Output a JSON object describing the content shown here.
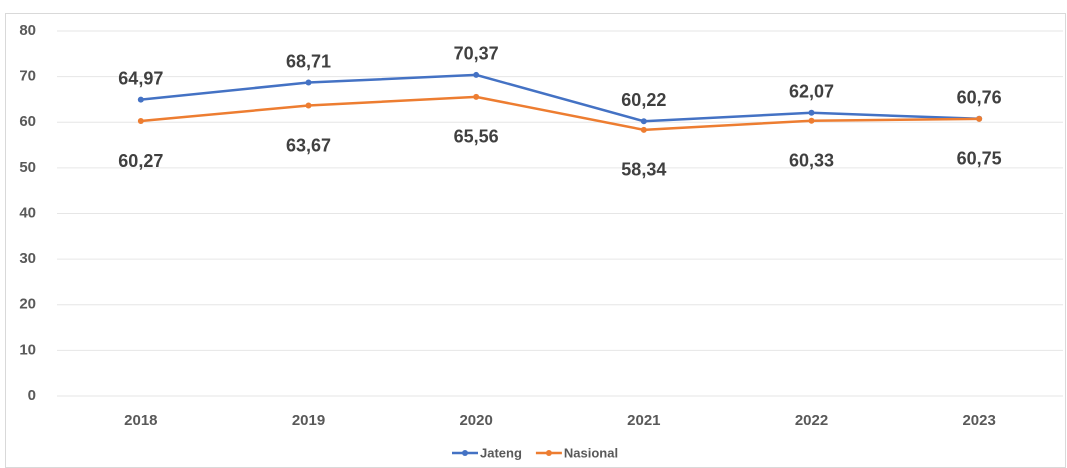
{
  "chart_data": {
    "type": "line",
    "categories": [
      "2018",
      "2019",
      "2020",
      "2021",
      "2022",
      "2023"
    ],
    "series": [
      {
        "name": "Jateng",
        "color": "#4472c4",
        "values": [
          64.97,
          68.71,
          70.37,
          60.22,
          62.07,
          60.76
        ],
        "value_labels": [
          "64,97",
          "68,71",
          "70,37",
          "60,22",
          "62,07",
          "60,76"
        ]
      },
      {
        "name": "Nasional",
        "color": "#ed7d31",
        "values": [
          60.27,
          63.67,
          65.56,
          58.34,
          60.33,
          60.75
        ],
        "value_labels": [
          "60,27",
          "63,67",
          "65,56",
          "58,34",
          "60,33",
          "60,75"
        ]
      }
    ],
    "ylim": [
      0,
      80
    ],
    "yticks": [
      0,
      10,
      20,
      30,
      40,
      50,
      60,
      70,
      80
    ],
    "grid": true,
    "legend": "bottom"
  }
}
